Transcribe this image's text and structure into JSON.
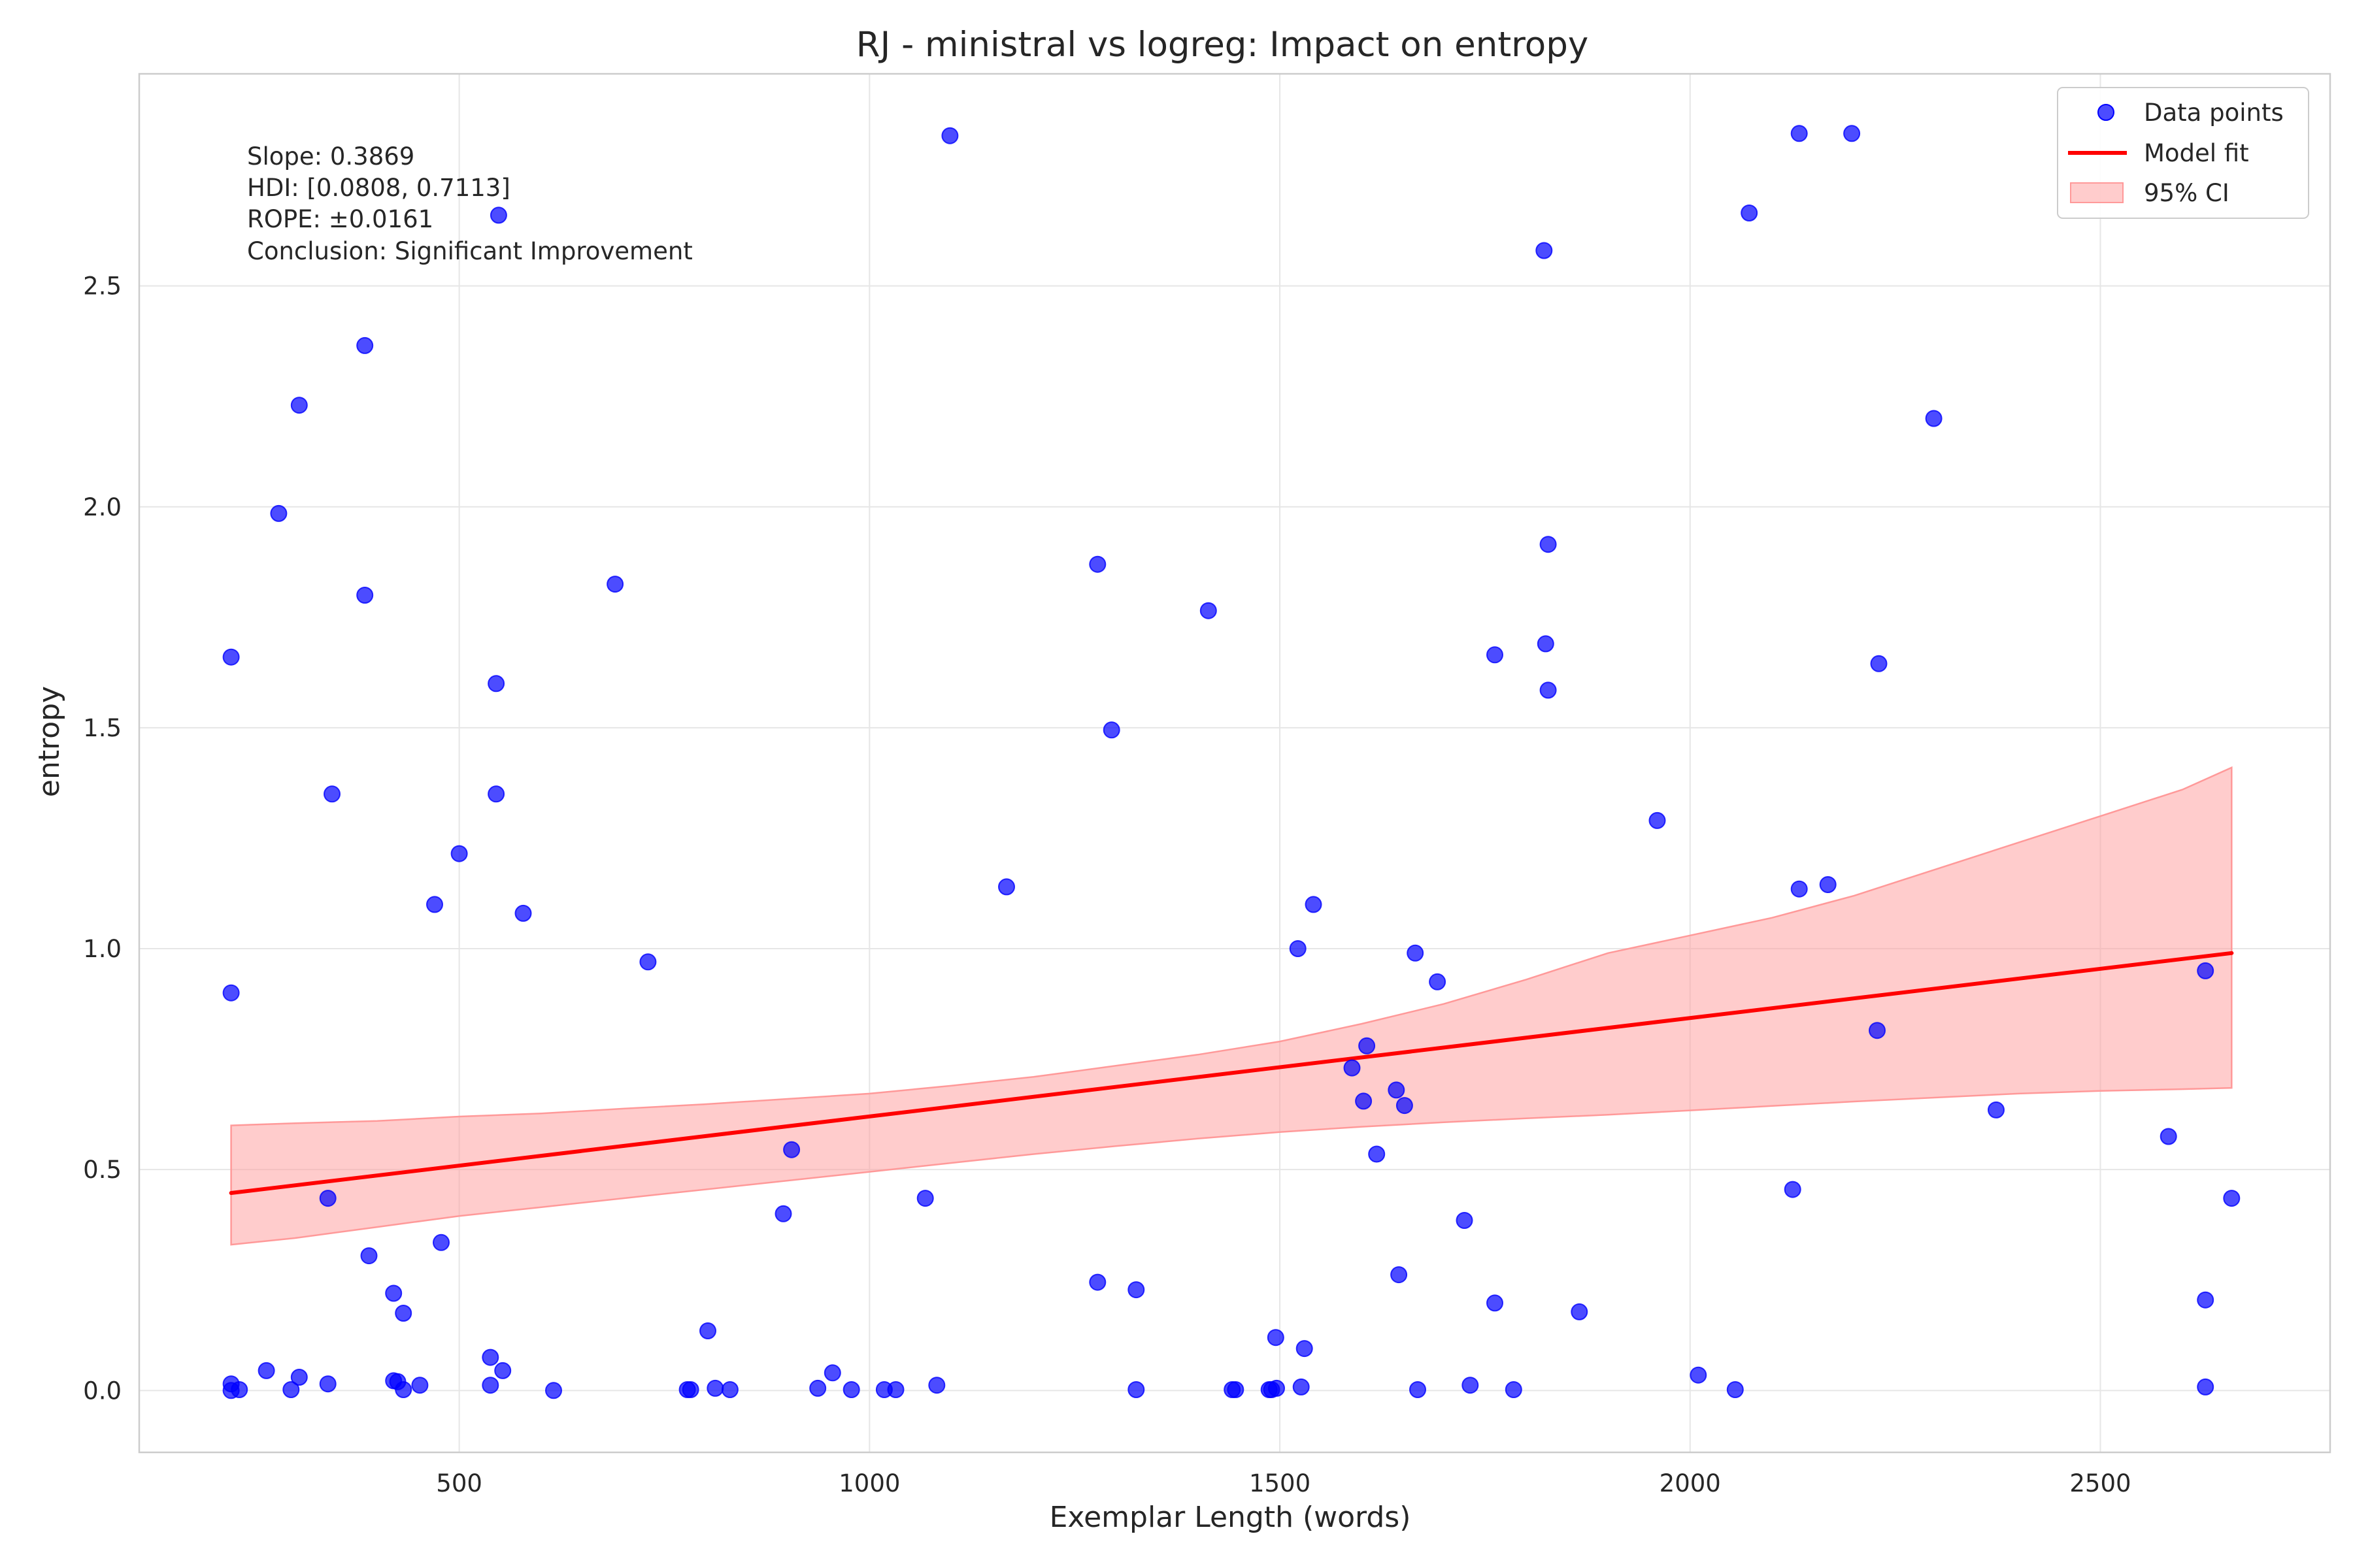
{
  "chart_data": {
    "type": "scatter",
    "title": "RJ - ministral vs logreg: Impact on entropy",
    "xlabel": "Exemplar Length (words)",
    "ylabel": "entropy",
    "xlim": [
      110,
      2780
    ],
    "ylim": [
      -0.14,
      2.98
    ],
    "xticks": [
      500,
      1000,
      1500,
      2000,
      2500
    ],
    "yticks": [
      0.0,
      0.5,
      1.0,
      1.5,
      2.0,
      2.5
    ],
    "ytick_labels": [
      "0.0",
      "0.5",
      "1.0",
      "1.5",
      "2.0",
      "2.5"
    ],
    "grid": true,
    "legend_position": "top-right",
    "legend": [
      "Data points",
      "Model fit",
      "95% CI"
    ],
    "stats": [
      "Slope: 0.3869",
      "HDI: [0.0808, 0.7113]",
      "ROPE: ±0.0161",
      "Conclusion: Significant Improvement"
    ],
    "colors": {
      "points": "#0000ff",
      "fit": "#ff0000",
      "ci_fill": "#ff9999"
    },
    "fit": {
      "x": [
        222,
        2660
      ],
      "y": [
        0.447,
        0.99
      ]
    },
    "ci": {
      "x": [
        222,
        300,
        400,
        500,
        600,
        700,
        800,
        900,
        1000,
        1100,
        1200,
        1300,
        1400,
        1500,
        1600,
        1700,
        1800,
        1900,
        2000,
        2100,
        2200,
        2300,
        2400,
        2500,
        2600,
        2660
      ],
      "upper": [
        0.6,
        0.605,
        0.61,
        0.62,
        0.627,
        0.638,
        0.648,
        0.66,
        0.672,
        0.69,
        0.71,
        0.735,
        0.76,
        0.79,
        0.83,
        0.875,
        0.93,
        0.99,
        1.03,
        1.07,
        1.12,
        1.18,
        1.24,
        1.3,
        1.36,
        1.41
      ],
      "lower": [
        0.33,
        0.345,
        0.37,
        0.395,
        0.415,
        0.435,
        0.455,
        0.475,
        0.495,
        0.515,
        0.535,
        0.553,
        0.57,
        0.585,
        0.597,
        0.607,
        0.616,
        0.624,
        0.634,
        0.644,
        0.654,
        0.663,
        0.672,
        0.678,
        0.682,
        0.685
      ]
    },
    "points": [
      [
        222,
        0.0
      ],
      [
        222,
        0.015
      ],
      [
        232,
        0.002
      ],
      [
        222,
        1.66
      ],
      [
        222,
        0.9
      ],
      [
        265,
        0.045
      ],
      [
        280,
        1.985
      ],
      [
        295,
        0.002
      ],
      [
        305,
        0.03
      ],
      [
        305,
        2.23
      ],
      [
        340,
        0.015
      ],
      [
        340,
        0.435
      ],
      [
        345,
        1.35
      ],
      [
        385,
        2.365
      ],
      [
        385,
        1.8
      ],
      [
        390,
        0.305
      ],
      [
        420,
        0.22
      ],
      [
        420,
        0.022
      ],
      [
        425,
        0.02
      ],
      [
        432,
        0.002
      ],
      [
        432,
        0.175
      ],
      [
        452,
        0.012
      ],
      [
        470,
        1.1
      ],
      [
        478,
        0.335
      ],
      [
        500,
        1.215
      ],
      [
        538,
        0.075
      ],
      [
        538,
        0.012
      ],
      [
        545,
        1.6
      ],
      [
        545,
        1.35
      ],
      [
        553,
        0.045
      ],
      [
        548,
        2.66
      ],
      [
        578,
        1.08
      ],
      [
        615,
        0.0
      ],
      [
        690,
        1.825
      ],
      [
        730,
        0.97
      ],
      [
        778,
        0.002
      ],
      [
        782,
        0.002
      ],
      [
        803,
        0.135
      ],
      [
        812,
        0.005
      ],
      [
        830,
        0.002
      ],
      [
        895,
        0.4
      ],
      [
        905,
        0.545
      ],
      [
        937,
        0.005
      ],
      [
        955,
        0.04
      ],
      [
        978,
        0.002
      ],
      [
        1018,
        0.002
      ],
      [
        1032,
        0.002
      ],
      [
        1068,
        0.435
      ],
      [
        1082,
        0.012
      ],
      [
        1098,
        2.84
      ],
      [
        1167,
        1.14
      ],
      [
        1278,
        1.87
      ],
      [
        1278,
        0.245
      ],
      [
        1295,
        1.495
      ],
      [
        1325,
        0.228
      ],
      [
        1325,
        0.002
      ],
      [
        1413,
        1.765
      ],
      [
        1442,
        0.002
      ],
      [
        1446,
        0.002
      ],
      [
        1487,
        0.002
      ],
      [
        1490,
        0.002
      ],
      [
        1495,
        0.12
      ],
      [
        1496,
        0.005
      ],
      [
        1522,
        1.0
      ],
      [
        1526,
        0.008
      ],
      [
        1530,
        0.095
      ],
      [
        1541,
        1.1
      ],
      [
        1588,
        0.73
      ],
      [
        1602,
        0.655
      ],
      [
        1606,
        0.78
      ],
      [
        1618,
        0.535
      ],
      [
        1642,
        0.68
      ],
      [
        1645,
        0.262
      ],
      [
        1652,
        0.645
      ],
      [
        1665,
        0.99
      ],
      [
        1668,
        0.002
      ],
      [
        1692,
        0.925
      ],
      [
        1725,
        0.385
      ],
      [
        1732,
        0.012
      ],
      [
        1762,
        1.665
      ],
      [
        1762,
        0.198
      ],
      [
        1785,
        0.002
      ],
      [
        1822,
        2.58
      ],
      [
        1824,
        1.69
      ],
      [
        1827,
        1.915
      ],
      [
        1827,
        1.585
      ],
      [
        1865,
        0.178
      ],
      [
        1960,
        1.29
      ],
      [
        2010,
        0.035
      ],
      [
        2055,
        0.002
      ],
      [
        2072,
        2.665
      ],
      [
        2125,
        0.455
      ],
      [
        2133,
        2.845
      ],
      [
        2133,
        1.135
      ],
      [
        2168,
        1.145
      ],
      [
        2197,
        2.845
      ],
      [
        2228,
        0.815
      ],
      [
        2230,
        1.645
      ],
      [
        2297,
        2.2
      ],
      [
        2373,
        0.635
      ],
      [
        2583,
        0.575
      ],
      [
        2628,
        0.95
      ],
      [
        2628,
        0.205
      ],
      [
        2628,
        0.008
      ],
      [
        2660,
        0.435
      ]
    ]
  }
}
